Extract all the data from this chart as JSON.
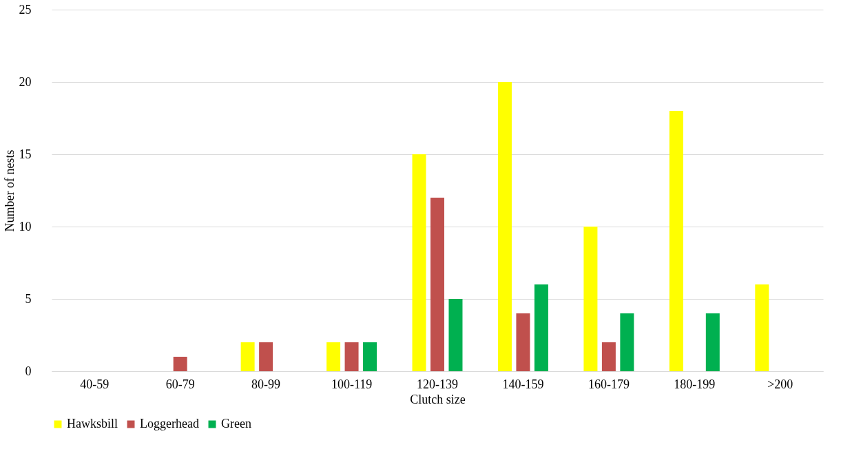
{
  "chart_data": {
    "type": "bar",
    "xlabel": "Clutch size",
    "ylabel": "Number of nests",
    "categories": [
      "40-59",
      "60-79",
      "80-99",
      "100-119",
      "120-139",
      "140-159",
      "160-179",
      "180-199",
      ">200"
    ],
    "series": [
      {
        "name": "Hawksbill",
        "color": "#ffff00",
        "values": [
          0,
          0,
          2,
          2,
          15,
          20,
          10,
          18,
          6
        ]
      },
      {
        "name": "Loggerhead",
        "color": "#c0504d",
        "values": [
          0,
          1,
          2,
          2,
          12,
          4,
          2,
          0,
          0
        ]
      },
      {
        "name": "Green",
        "color": "#00b050",
        "values": [
          0,
          0,
          0,
          2,
          5,
          6,
          4,
          4,
          0
        ]
      }
    ],
    "ylim": [
      0,
      25
    ],
    "yticks": [
      0,
      5,
      10,
      15,
      20,
      25
    ],
    "grid": "y",
    "legend": "bottom"
  }
}
